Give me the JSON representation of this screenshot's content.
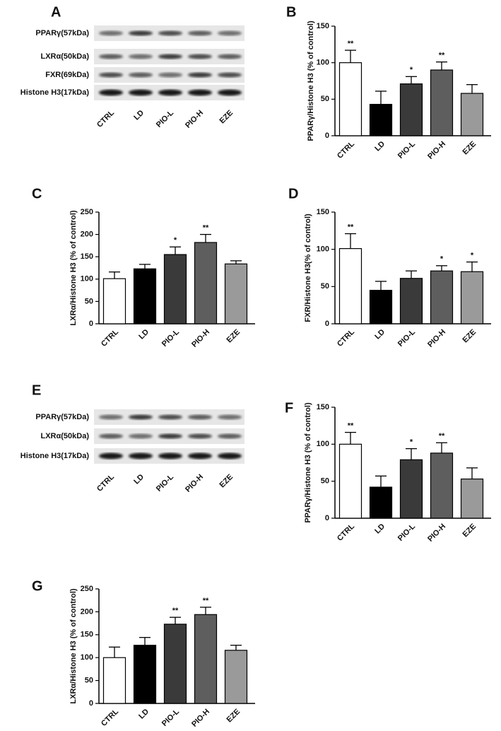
{
  "blots": [
    {
      "panel": "A",
      "rows": [
        "PPARγ(57kDa)",
        "LXRα(50kDa)",
        "FXR(69kDa)",
        "Histone H3(17kDa)"
      ],
      "lanes": [
        "CTRL",
        "LD",
        "PIO-L",
        "PIO-H",
        "EZE"
      ]
    },
    {
      "panel": "E",
      "rows": [
        "PPARγ(57kDa)",
        "LXRα(50kDa)",
        "Histone H3(17kDa)"
      ],
      "lanes": [
        "CTRL",
        "LD",
        "PIO-L",
        "PIO-H",
        "EZE"
      ]
    }
  ],
  "chart_data": [
    {
      "type": "bar",
      "panel": "B",
      "ylabel": "PPARγ/Histone H3 (% of control)",
      "categories": [
        "CTRL",
        "LD",
        "PIO-L",
        "PIO-H",
        "EZE"
      ],
      "values": [
        100,
        43,
        71,
        90,
        58
      ],
      "errors": [
        17,
        18,
        10,
        11,
        12
      ],
      "annotations": [
        "**",
        null,
        "*",
        "**",
        null
      ],
      "colors": [
        "#ffffff",
        "#000000",
        "#3a3a3a",
        "#5e5e5e",
        "#9a9a9a"
      ],
      "ylim": [
        0,
        150
      ],
      "yticks": [
        0,
        50,
        100,
        150
      ]
    },
    {
      "type": "bar",
      "panel": "C",
      "ylabel": "LXRα/Histone H3 (% of control)",
      "categories": [
        "CTRL",
        "LD",
        "PIO-L",
        "PIO-H",
        "EZE"
      ],
      "values": [
        101,
        123,
        155,
        182,
        134
      ],
      "errors": [
        15,
        10,
        17,
        18,
        7
      ],
      "annotations": [
        null,
        null,
        "*",
        "**",
        null
      ],
      "colors": [
        "#ffffff",
        "#000000",
        "#3a3a3a",
        "#5e5e5e",
        "#9a9a9a"
      ],
      "ylim": [
        0,
        250
      ],
      "yticks": [
        0,
        50,
        100,
        150,
        200,
        250
      ]
    },
    {
      "type": "bar",
      "panel": "D",
      "ylabel": "FXR/Histone H3(% of control)",
      "categories": [
        "CTRL",
        "LD",
        "PIO-L",
        "PIO-H",
        "EZE"
      ],
      "values": [
        101,
        45,
        61,
        71,
        70
      ],
      "errors": [
        20,
        12,
        10,
        7,
        13
      ],
      "annotations": [
        "**",
        null,
        null,
        "*",
        "*"
      ],
      "colors": [
        "#ffffff",
        "#000000",
        "#3a3a3a",
        "#5e5e5e",
        "#9a9a9a"
      ],
      "ylim": [
        0,
        150
      ],
      "yticks": [
        0,
        50,
        100,
        150
      ]
    },
    {
      "type": "bar",
      "panel": "F",
      "ylabel": "PPARγ/Histone H3 (% of control)",
      "categories": [
        "CTRL",
        "LD",
        "PIO-L",
        "PIO-H",
        "EZE"
      ],
      "values": [
        100,
        42,
        79,
        88,
        53
      ],
      "errors": [
        16,
        15,
        15,
        14,
        15
      ],
      "annotations": [
        "**",
        null,
        "*",
        "**",
        null
      ],
      "colors": [
        "#ffffff",
        "#000000",
        "#3a3a3a",
        "#5e5e5e",
        "#9a9a9a"
      ],
      "ylim": [
        0,
        150
      ],
      "yticks": [
        0,
        50,
        100,
        150
      ]
    },
    {
      "type": "bar",
      "panel": "G",
      "ylabel": "LXRα/Histone H3  (% of control)",
      "categories": [
        "CTRL",
        "LD",
        "PIO-L",
        "PIO-H",
        "EZE"
      ],
      "values": [
        100,
        127,
        173,
        194,
        116
      ],
      "errors": [
        23,
        17,
        15,
        16,
        11
      ],
      "annotations": [
        null,
        null,
        "**",
        "**",
        null
      ],
      "colors": [
        "#ffffff",
        "#000000",
        "#3a3a3a",
        "#5e5e5e",
        "#9a9a9a"
      ],
      "ylim": [
        0,
        250
      ],
      "yticks": [
        0,
        50,
        100,
        150,
        200,
        250
      ]
    }
  ]
}
